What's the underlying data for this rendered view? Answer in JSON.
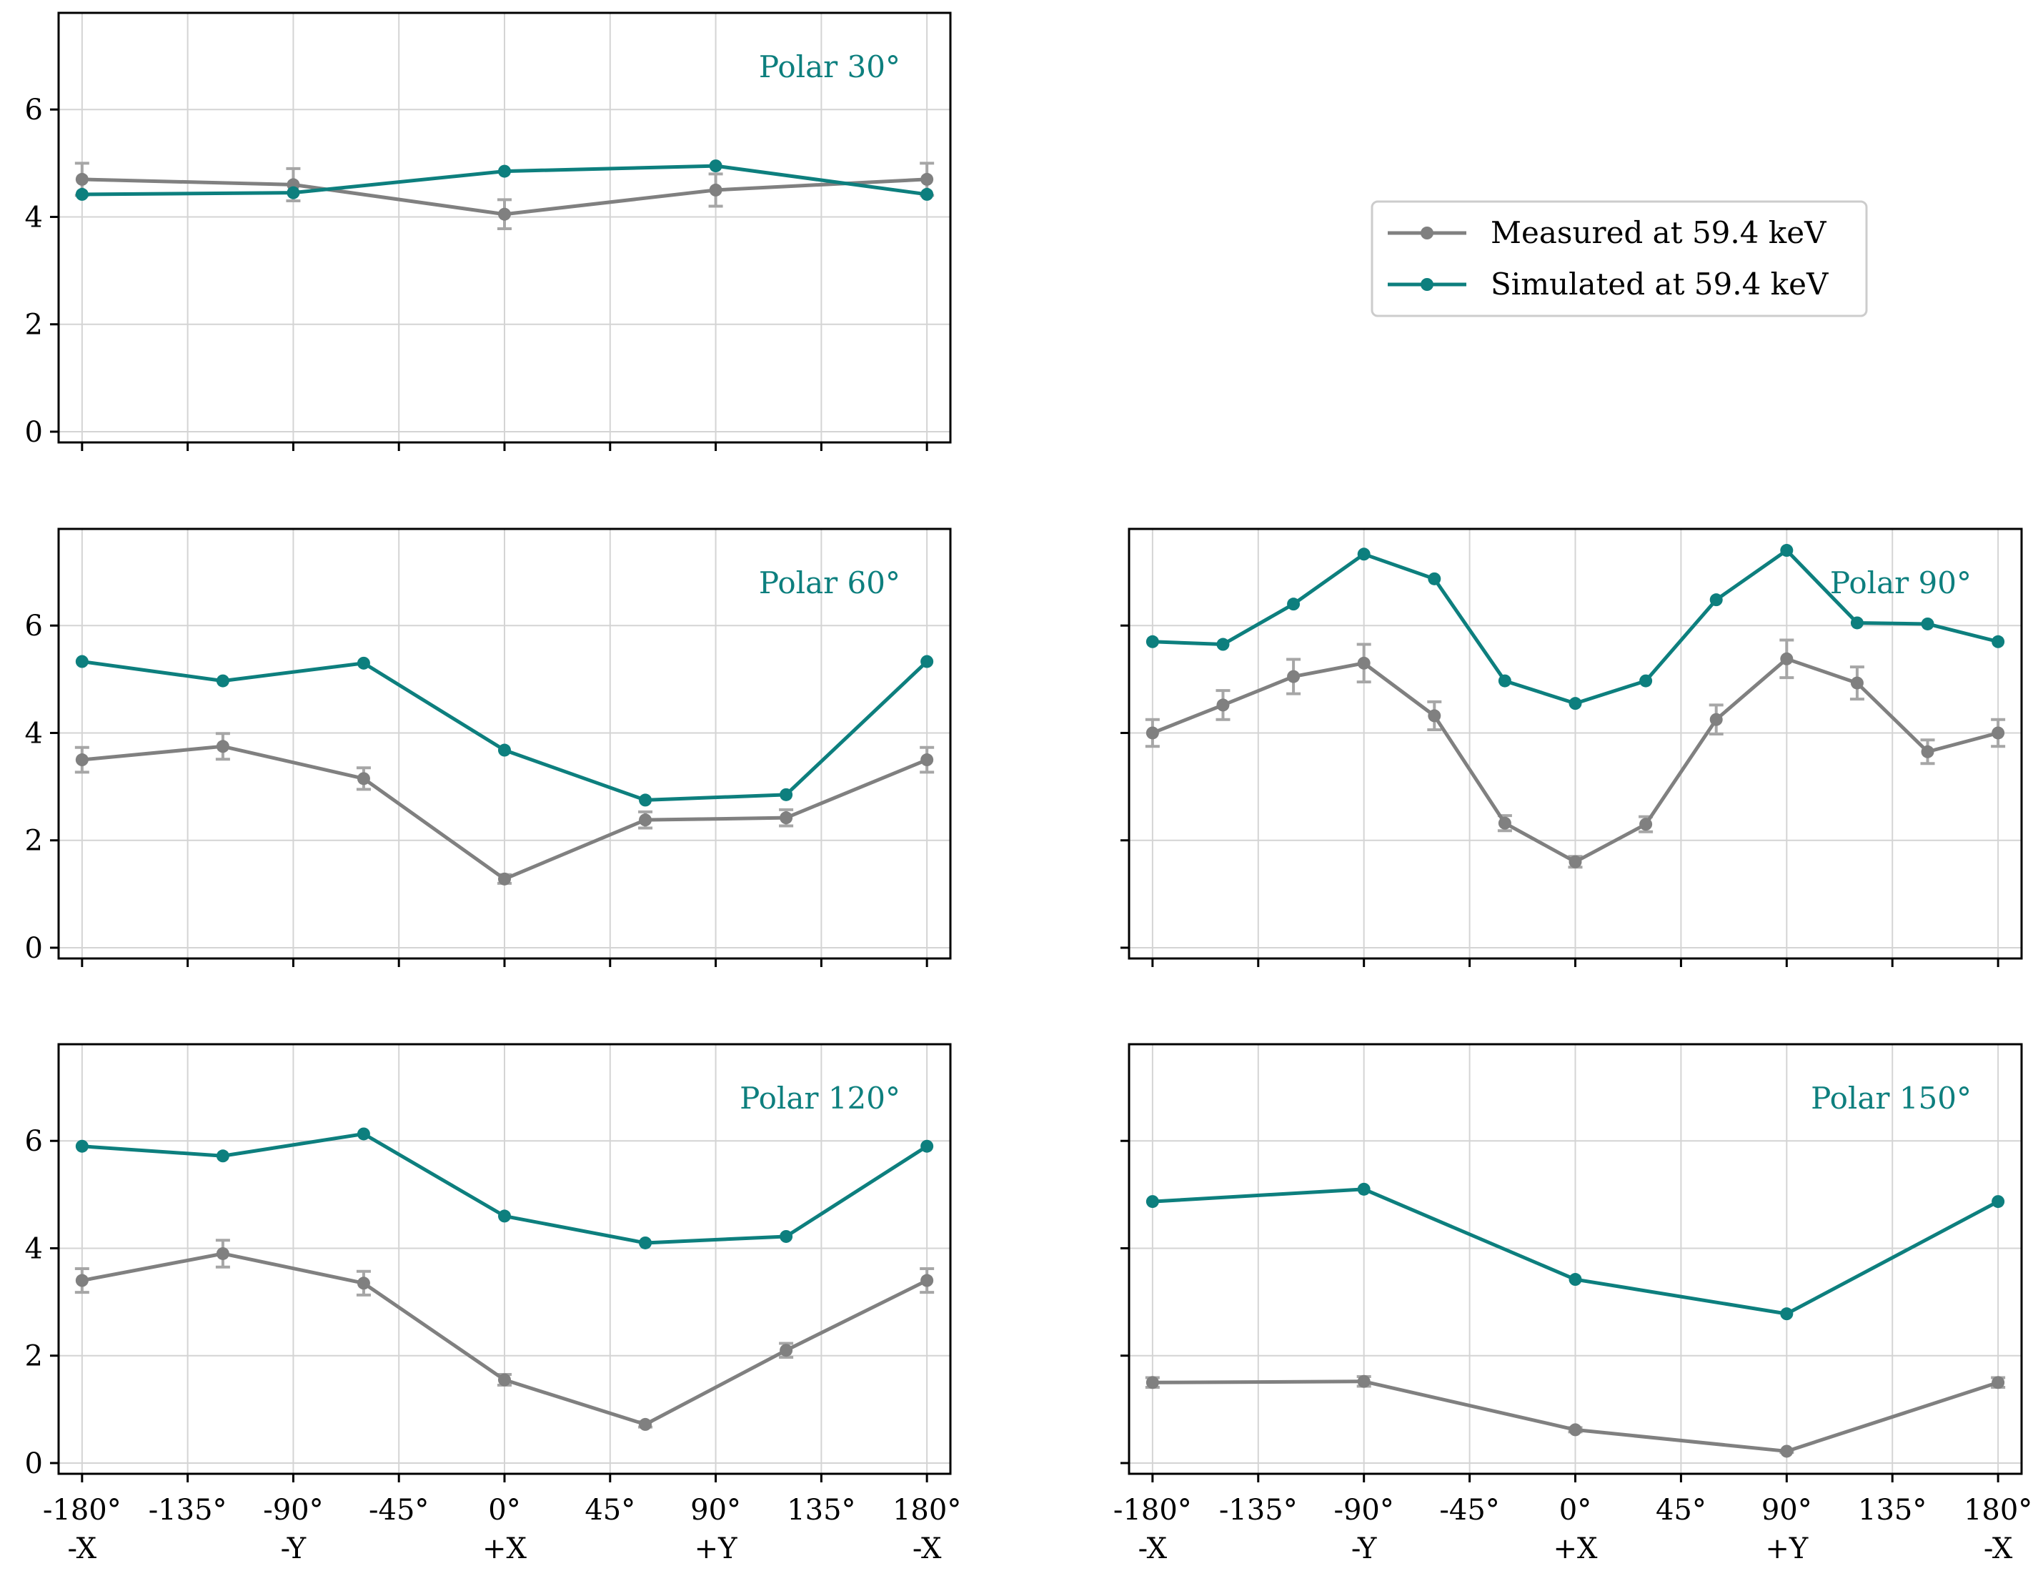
{
  "chart_data": {
    "type": "line",
    "layout": "3x2 grid of subplots (top-right slot holds the legend)",
    "x_tick_labels": [
      "-180°",
      "-135°",
      "-90°",
      "-45°",
      "0°",
      "45°",
      "90°",
      "135°",
      "180°"
    ],
    "x_tick_sublabels": [
      "-X",
      "",
      "-Y",
      "",
      "+X",
      "",
      "+Y",
      "",
      "-X"
    ],
    "x_ticks": [
      -180,
      -135,
      -90,
      -45,
      0,
      45,
      90,
      135,
      180
    ],
    "xlim": [
      -190,
      190
    ],
    "y_ticks": [
      0,
      2,
      4,
      6
    ],
    "ylim": [
      -0.2,
      7.8
    ],
    "grid": true,
    "legend": {
      "placement": "top-right",
      "entries": [
        "Measured at 59.4 keV",
        "Simulated at 59.4 keV"
      ]
    },
    "colors": {
      "measured": "#808080",
      "simulated": "#0d7f7e",
      "errorbar": "#a6a6a6"
    },
    "panels": [
      {
        "title": "Polar 30°",
        "x": [
          -180,
          -90,
          0,
          90,
          180
        ],
        "series": [
          {
            "name": "Measured at 59.4 keV",
            "values": [
              4.7,
              4.6,
              4.05,
              4.5,
              4.7
            ],
            "errors": [
              0.3,
              0.3,
              0.27,
              0.3,
              0.3
            ]
          },
          {
            "name": "Simulated at 59.4 keV",
            "values": [
              4.42,
              4.45,
              4.85,
              4.95,
              4.42
            ]
          }
        ]
      },
      {
        "title": "Polar 60°",
        "x": [
          -180,
          -120,
          -60,
          0,
          60,
          120,
          180
        ],
        "series": [
          {
            "name": "Measured at 59.4 keV",
            "values": [
              3.5,
              3.75,
              3.15,
              1.28,
              2.38,
              2.42,
              3.5
            ],
            "errors": [
              0.23,
              0.24,
              0.2,
              0.08,
              0.15,
              0.15,
              0.23
            ]
          },
          {
            "name": "Simulated at 59.4 keV",
            "values": [
              5.33,
              4.97,
              5.3,
              3.68,
              2.75,
              2.85,
              5.33
            ]
          }
        ]
      },
      {
        "title": "Polar 90°",
        "x": [
          -180,
          -150,
          -120,
          -90,
          -60,
          -30,
          0,
          30,
          60,
          90,
          120,
          150,
          180
        ],
        "series": [
          {
            "name": "Measured at 59.4 keV",
            "values": [
              4.0,
              4.52,
              5.05,
              5.3,
              4.32,
              2.32,
              1.6,
              2.3,
              4.25,
              5.38,
              4.93,
              3.65,
              4.0
            ],
            "errors": [
              0.25,
              0.27,
              0.32,
              0.35,
              0.26,
              0.14,
              0.1,
              0.14,
              0.27,
              0.35,
              0.3,
              0.22,
              0.25
            ]
          },
          {
            "name": "Simulated at 59.4 keV",
            "values": [
              5.7,
              5.65,
              6.4,
              7.33,
              6.87,
              4.97,
              4.55,
              4.97,
              6.48,
              7.4,
              6.05,
              6.03,
              5.7
            ]
          }
        ]
      },
      {
        "title": "Polar 120°",
        "x": [
          -180,
          -120,
          -60,
          0,
          60,
          120,
          180
        ],
        "series": [
          {
            "name": "Measured at 59.4 keV",
            "values": [
              3.4,
              3.9,
              3.35,
              1.55,
              0.72,
              2.1,
              3.4
            ],
            "errors": [
              0.22,
              0.25,
              0.22,
              0.1,
              0.05,
              0.13,
              0.22
            ]
          },
          {
            "name": "Simulated at 59.4 keV",
            "values": [
              5.9,
              5.72,
              6.13,
              4.6,
              4.1,
              4.22,
              5.9
            ]
          }
        ]
      },
      {
        "title": "Polar 150°",
        "x": [
          -180,
          -90,
          0,
          90,
          180
        ],
        "series": [
          {
            "name": "Measured at 59.4 keV",
            "values": [
              1.5,
              1.52,
              0.62,
              0.22,
              1.5
            ],
            "errors": [
              0.09,
              0.09,
              0.04,
              0.02,
              0.09
            ]
          },
          {
            "name": "Simulated at 59.4 keV",
            "values": [
              4.87,
              5.1,
              3.42,
              2.78,
              4.87
            ]
          }
        ]
      }
    ]
  }
}
